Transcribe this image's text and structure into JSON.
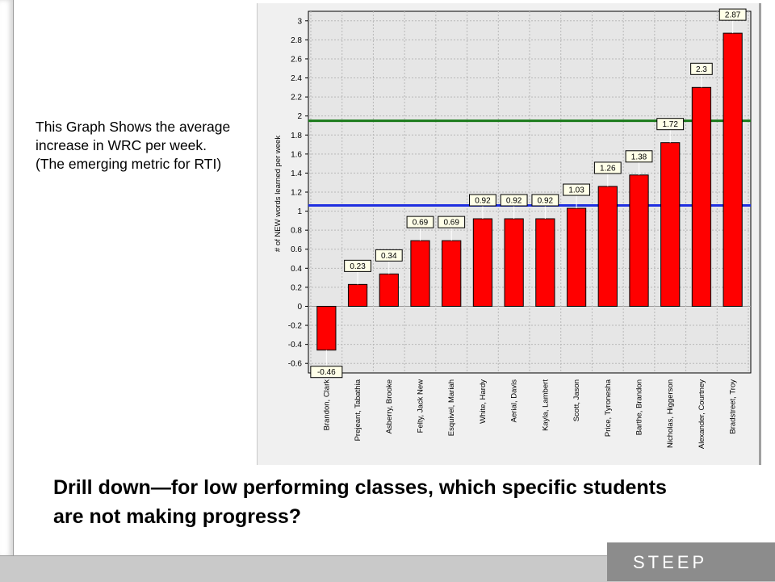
{
  "callout_text": "This Graph Shows the average increase in WRC per week.  (The emerging metric for RTI)",
  "headline_text": "Drill down—for low performing classes, which specific students are not making progress?",
  "footer": {
    "logo_text": "STEEP"
  },
  "chart_data": {
    "type": "bar",
    "title": "",
    "xlabel": "",
    "ylabel": "# of NEW words learned per week",
    "ylim": [
      -0.7,
      3.1
    ],
    "yticks": [
      -0.6,
      -0.4,
      -0.2,
      0,
      0.2,
      0.4,
      0.6,
      0.8,
      1,
      1.2,
      1.4,
      1.6,
      1.8,
      2,
      2.2,
      2.4,
      2.6,
      2.8,
      3
    ],
    "categories": [
      "Brandon, Clark",
      "Prejeant, Tabathia",
      "Asberry, Brooke",
      "Felty, Jack New",
      "Esquivel, Mariah",
      "White, Hardy",
      "Aerial, Davis",
      "Kayla, Lambert",
      "Scott, Jason",
      "Price, Tyronesha",
      "Barthe, Brandon",
      "Nicholas, Higgerson",
      "Alexander, Courtney",
      "Bradstreet, Troy"
    ],
    "values": [
      -0.46,
      0.23,
      0.34,
      0.69,
      0.69,
      0.92,
      0.92,
      0.92,
      1.03,
      1.26,
      1.38,
      1.72,
      2.3,
      2.87
    ],
    "data_labels": [
      "-0.46",
      "0.23",
      "0.34",
      "0.69",
      "0.69",
      "0.92",
      "0.92",
      "0.92",
      "1.03",
      "1.26",
      "1.38",
      "1.72",
      "2.3",
      "2.87"
    ],
    "reference_lines": [
      {
        "value": 1.95,
        "color": "#1a7a1a"
      },
      {
        "value": 1.06,
        "color": "#1f2fe0"
      }
    ],
    "bar_color": "#ff0000",
    "grid": true
  }
}
